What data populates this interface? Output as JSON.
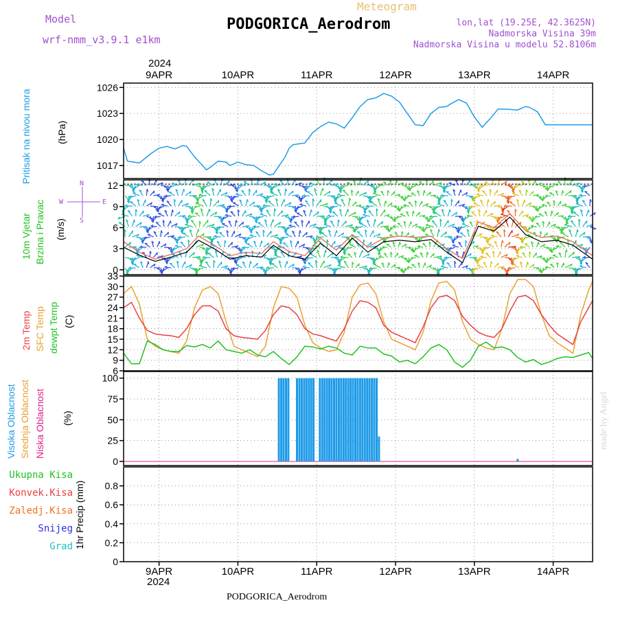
{
  "header": {
    "model_label": "Model",
    "model_name": "wrf-nmm_v3.9.1 e1km",
    "meteogram_label": "Meteogram",
    "station": "PODGORICA_Aerodrom",
    "lonlat": "lon,lat (19.25E, 42.3625N)",
    "elevation": "Nadmorska Visina 39m",
    "model_elevation": "Nadmorska Visina u modelu 52.8106m",
    "year_top": "2024",
    "year_bottom": "2024",
    "footer_station": "PODGORICA_Aerodrom",
    "credit": "made by Angel"
  },
  "colors": {
    "pressure": "#1e9be8",
    "temp2m": "#e84040",
    "sfc_temp": "#e8a030",
    "dewpoint": "#20c020",
    "high_cloud": "#1e9be8",
    "mid_cloud": "#e8a030",
    "low_cloud": "#e0208a",
    "total_precip": "#20c020",
    "conv_precip": "#e84040",
    "frozen_precip": "#f07020",
    "snow": "#3030e0",
    "hail": "#20c0c0",
    "wind_legend": "#a050d0"
  },
  "wind_compass": {
    "north": "N",
    "south": "S",
    "east": "E",
    "west": "W"
  },
  "chart_data": [
    {
      "type": "line",
      "name": "pressure",
      "ylabel": [
        "Pritisak na nivou mora",
        "(hPa)"
      ],
      "ylim": [
        1015.5,
        1026.5
      ],
      "yticks": [
        1017,
        1020,
        1023,
        1026
      ],
      "x_days": [
        8.55,
        8.6,
        8.75,
        8.9,
        9.0,
        9.1,
        9.2,
        9.3,
        9.35,
        9.45,
        9.55,
        9.6,
        9.65,
        9.75,
        9.85,
        9.9,
        10.0,
        10.1,
        10.2,
        10.3,
        10.4,
        10.45,
        10.6,
        10.65,
        10.7,
        10.85,
        10.95,
        11.05,
        11.15,
        11.25,
        11.35,
        11.45,
        11.55,
        11.65,
        11.75,
        11.85,
        11.95,
        12.05,
        12.15,
        12.25,
        12.35,
        12.45,
        12.55,
        12.65,
        12.7,
        12.8,
        12.9,
        13.0,
        13.1,
        13.2,
        13.3,
        13.4,
        13.55,
        13.65,
        13.7,
        13.8,
        13.9,
        14.0,
        14.1,
        14.2,
        14.3,
        14.4,
        14.5
      ],
      "series": [
        {
          "values": [
            1019.0,
            1017.5,
            1017.3,
            1018.4,
            1019.0,
            1019.2,
            1018.9,
            1019.3,
            1019.2,
            1018.0,
            1017.0,
            1016.5,
            1016.8,
            1017.5,
            1017.4,
            1017.0,
            1017.4,
            1017.1,
            1017.0,
            1016.4,
            1015.9,
            1016.0,
            1018.0,
            1019.0,
            1019.4,
            1019.6,
            1020.8,
            1021.5,
            1022.0,
            1021.8,
            1021.3,
            1022.5,
            1023.8,
            1024.6,
            1024.8,
            1025.3,
            1025.0,
            1024.3,
            1023.0,
            1021.7,
            1021.6,
            1023.0,
            1023.7,
            1023.8,
            1024.1,
            1024.6,
            1024.2,
            1022.6,
            1021.4,
            1022.4,
            1023.5,
            1023.5,
            1023.4,
            1023.8,
            1023.7,
            1023.2,
            1021.7,
            1021.7,
            1021.7,
            1021.7,
            1021.7,
            1021.7,
            1021.7
          ]
        }
      ]
    },
    {
      "type": "line",
      "name": "wind",
      "ylabel": [
        "10m Vjetar",
        "Brzina i Pravac",
        "(m/s)"
      ],
      "ylim": [
        -0.7,
        12.8
      ],
      "yticks": [
        0,
        3,
        6,
        9,
        12
      ],
      "x_days": [
        8.55,
        8.75,
        8.95,
        9.15,
        9.35,
        9.5,
        9.7,
        9.9,
        10.1,
        10.3,
        10.45,
        10.65,
        10.85,
        11.05,
        11.25,
        11.45,
        11.65,
        11.85,
        12.05,
        12.25,
        12.45,
        12.65,
        12.85,
        13.05,
        13.25,
        13.45,
        13.65,
        13.85,
        14.05,
        14.25,
        14.5
      ],
      "series": [
        {
          "name": "speed",
          "values": [
            3.2,
            2.1,
            1.2,
            1.8,
            2.5,
            4.2,
            3.0,
            1.5,
            2.0,
            1.8,
            3.5,
            2.0,
            1.5,
            3.8,
            2.0,
            4.5,
            2.5,
            4.0,
            4.2,
            4.0,
            4.3,
            2.5,
            1.0,
            6.2,
            5.5,
            7.5,
            5.0,
            4.0,
            4.2,
            3.5,
            1.5
          ]
        },
        {
          "name": "gust",
          "values": [
            4.0,
            2.5,
            1.5,
            2.2,
            3.0,
            4.8,
            3.5,
            2.0,
            2.5,
            2.3,
            4.0,
            2.6,
            2.0,
            4.5,
            2.8,
            5.0,
            3.2,
            4.5,
            4.8,
            4.6,
            4.8,
            3.0,
            1.6,
            6.8,
            6.0,
            8.0,
            5.6,
            4.6,
            4.8,
            4.0,
            2.0
          ]
        }
      ]
    },
    {
      "type": "line",
      "name": "temperature",
      "ylabel": [
        "2m Temp",
        "SFC Temp",
        "dewpt Temp",
        "(C)"
      ],
      "ylim": [
        6,
        33
      ],
      "yticks": [
        6,
        9,
        12,
        15,
        18,
        21,
        24,
        27,
        30,
        33
      ],
      "x_days": [
        8.55,
        8.65,
        8.75,
        8.85,
        8.95,
        9.05,
        9.15,
        9.25,
        9.35,
        9.45,
        9.55,
        9.65,
        9.75,
        9.85,
        9.95,
        10.05,
        10.15,
        10.25,
        10.35,
        10.45,
        10.55,
        10.65,
        10.75,
        10.85,
        10.95,
        11.05,
        11.15,
        11.25,
        11.35,
        11.45,
        11.55,
        11.65,
        11.75,
        11.85,
        11.95,
        12.05,
        12.15,
        12.25,
        12.35,
        12.45,
        12.55,
        12.65,
        12.75,
        12.85,
        12.95,
        13.05,
        13.15,
        13.25,
        13.35,
        13.45,
        13.55,
        13.65,
        13.75,
        13.85,
        13.95,
        14.05,
        14.15,
        14.25,
        14.35,
        14.45,
        14.5
      ],
      "series": [
        {
          "name": "2m Temp",
          "values": [
            24,
            25.5,
            21,
            17.5,
            16.5,
            16.2,
            16,
            15.5,
            18,
            22,
            24.5,
            24.5,
            23,
            18,
            16,
            15.5,
            15.3,
            15,
            17.5,
            22,
            24.5,
            24,
            22,
            18,
            16.5,
            16,
            15.2,
            14.5,
            18,
            23,
            26,
            25.5,
            24,
            19,
            17,
            16,
            15,
            14,
            18.5,
            24,
            27,
            27.5,
            26,
            21.5,
            19,
            17,
            16,
            15.5,
            18,
            23,
            27,
            27.5,
            26,
            22,
            19,
            16.5,
            15,
            13.5,
            20,
            24,
            26
          ]
        },
        {
          "name": "SFC Temp",
          "values": [
            28,
            30,
            25,
            15,
            13,
            12,
            11.5,
            11,
            14.5,
            24,
            29,
            30,
            28,
            20,
            13,
            12,
            11,
            10,
            13,
            24,
            30,
            29.5,
            27,
            19,
            14,
            12.5,
            11.5,
            12,
            17,
            27,
            30.5,
            31,
            28,
            20,
            15,
            14,
            13,
            12,
            17,
            26,
            31,
            31.5,
            29,
            20,
            15,
            13.5,
            12.5,
            12,
            18,
            28,
            32,
            32,
            30,
            22,
            16,
            14,
            12.5,
            11,
            22,
            29,
            31.5
          ]
        },
        {
          "name": "dewpt Temp",
          "values": [
            11,
            8,
            8,
            14.5,
            13.5,
            12,
            11.5,
            11.5,
            13.2,
            12.8,
            13.5,
            12.5,
            14.5,
            12,
            11.5,
            11,
            12,
            10.5,
            10,
            11.5,
            9.5,
            7.8,
            10,
            13,
            12.8,
            12.2,
            13,
            12.5,
            11,
            10.5,
            13,
            12.5,
            12.5,
            10.8,
            10.2,
            8.5,
            9,
            8,
            10,
            12.5,
            13.5,
            12,
            8.5,
            7,
            9,
            13,
            14.2,
            12.5,
            12.8,
            12,
            9.8,
            8.5,
            9.2,
            7.8,
            8.5,
            9.5,
            10,
            9.8,
            10.5,
            11.2,
            9.5
          ]
        }
      ]
    },
    {
      "type": "bar",
      "name": "cloud",
      "ylabel": [
        "Visoka Oblacnost",
        "Srednja Oblacnost",
        "Niska Oblacnost",
        "(%)"
      ],
      "ylim": [
        -5,
        108
      ],
      "yticks": [
        0,
        25,
        50,
        75,
        100
      ],
      "x_days": [
        10.52,
        10.55,
        10.58,
        10.61,
        10.64,
        10.75,
        10.78,
        10.81,
        10.84,
        10.87,
        10.9,
        10.93,
        10.96,
        11.04,
        11.07,
        11.1,
        11.13,
        11.16,
        11.19,
        11.22,
        11.25,
        11.28,
        11.31,
        11.34,
        11.37,
        11.4,
        11.43,
        11.46,
        11.49,
        11.52,
        11.55,
        11.58,
        11.61,
        11.64,
        11.67,
        11.7,
        11.73,
        11.76,
        11.79,
        13.55
      ],
      "series": [
        {
          "name": "Visoka Oblacnost",
          "values": [
            100,
            100,
            100,
            100,
            100,
            100,
            100,
            100,
            100,
            100,
            100,
            100,
            100,
            100,
            100,
            100,
            100,
            100,
            100,
            100,
            100,
            100,
            100,
            100,
            100,
            100,
            100,
            100,
            100,
            100,
            100,
            100,
            100,
            100,
            100,
            100,
            100,
            100,
            30,
            3
          ]
        }
      ]
    },
    {
      "type": "bar",
      "name": "precip",
      "ylabel": [
        "1hr Precip (mm)"
      ],
      "ylim": [
        0,
        1.0
      ],
      "yticks": [
        0,
        0.2,
        0.4,
        0.6,
        0.8
      ],
      "series": [
        {
          "name": "Ukupna Kisa",
          "values": []
        },
        {
          "name": "Konvek.Kisa",
          "values": []
        },
        {
          "name": "Zaledj.Kisa",
          "values": []
        },
        {
          "name": "Snijeg",
          "values": []
        },
        {
          "name": "Grad",
          "values": []
        }
      ]
    }
  ],
  "x_axis": {
    "range_days": [
      8.55,
      14.5
    ],
    "ticks": [
      {
        "day": 9,
        "label": "9APR"
      },
      {
        "day": 10,
        "label": "10APR"
      },
      {
        "day": 11,
        "label": "11APR"
      },
      {
        "day": 12,
        "label": "12APR"
      },
      {
        "day": 13,
        "label": "13APR"
      },
      {
        "day": 14,
        "label": "14APR"
      }
    ]
  },
  "precip_legend": [
    {
      "label": "Ukupna Kisa",
      "color": "#20c020"
    },
    {
      "label": "Konvek.Kisa",
      "color": "#e84040"
    },
    {
      "label": "Zaledj.Kisa",
      "color": "#f07020"
    },
    {
      "label": "Snijeg",
      "color": "#3030e0"
    },
    {
      "label": "Grad",
      "color": "#20c0c0"
    }
  ]
}
